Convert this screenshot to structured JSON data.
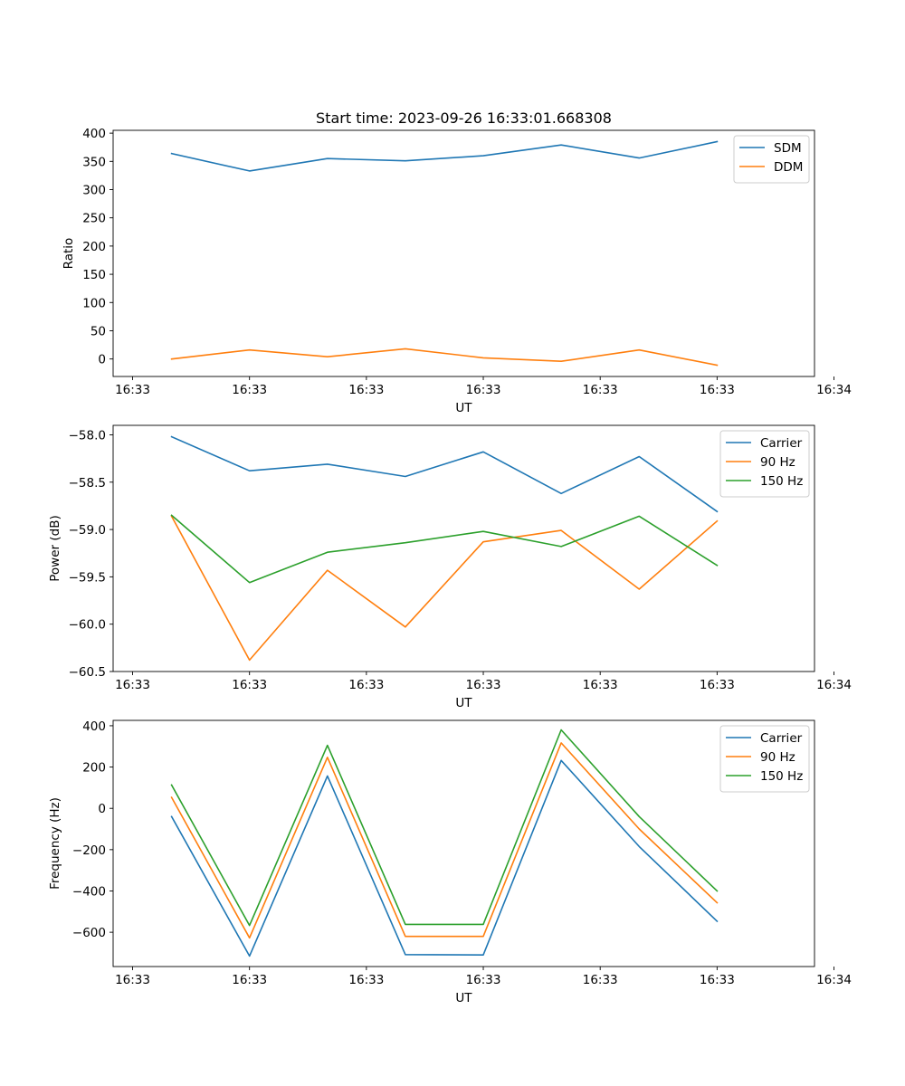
{
  "figure_title": "Start time: 2023-09-26 16:33:01.668308",
  "chart_data": [
    {
      "type": "line",
      "xlabel": "UT",
      "ylabel": "Ratio",
      "x": [
        1,
        2,
        3,
        4,
        5,
        6,
        7,
        8
      ],
      "xlim": [
        0.25,
        9.25
      ],
      "xticks": [
        0.5,
        2,
        3.5,
        5,
        6.5,
        8,
        9.5
      ],
      "xtick_labels": [
        "16:33",
        "16:33",
        "16:33",
        "16:33",
        "16:33",
        "16:33",
        "16:34"
      ],
      "ylim": [
        -31,
        405
      ],
      "yticks": [
        0,
        50,
        100,
        150,
        200,
        250,
        300,
        350,
        400
      ],
      "ytick_labels": [
        "0",
        "50",
        "100",
        "150",
        "200",
        "250",
        "300",
        "350",
        "400"
      ],
      "legend_position": "top-right",
      "series": [
        {
          "name": "SDM",
          "color": "#1f77b4",
          "values": [
            364,
            333,
            355,
            351,
            360,
            379,
            356,
            385
          ]
        },
        {
          "name": "DDM",
          "color": "#ff7f0e",
          "values": [
            0,
            16,
            4,
            18,
            2,
            -4,
            16,
            -11
          ]
        }
      ]
    },
    {
      "type": "line",
      "xlabel": "UT",
      "ylabel": "Power (dB)",
      "x": [
        1,
        2,
        3,
        4,
        5,
        6,
        7,
        8
      ],
      "xlim": [
        0.25,
        9.25
      ],
      "xticks": [
        0.5,
        2,
        3.5,
        5,
        6.5,
        8,
        9.5
      ],
      "xtick_labels": [
        "16:33",
        "16:33",
        "16:33",
        "16:33",
        "16:33",
        "16:33",
        "16:34"
      ],
      "ylim": [
        -60.5,
        -57.9
      ],
      "yticks": [
        -60.5,
        -60.0,
        -59.5,
        -59.0,
        -58.5,
        -58.0
      ],
      "ytick_labels": [
        "−60.5",
        "−60.0",
        "−59.5",
        "−59.0",
        "−58.5",
        "−58.0"
      ],
      "legend_position": "top-right",
      "series": [
        {
          "name": "Carrier",
          "color": "#1f77b4",
          "values": [
            -58.02,
            -58.38,
            -58.31,
            -58.44,
            -58.18,
            -58.62,
            -58.23,
            -58.81
          ]
        },
        {
          "name": "90 Hz",
          "color": "#ff7f0e",
          "values": [
            -58.86,
            -60.38,
            -59.43,
            -60.03,
            -59.13,
            -59.01,
            -59.63,
            -58.91
          ]
        },
        {
          "name": "150 Hz",
          "color": "#2ca02c",
          "values": [
            -58.85,
            -59.56,
            -59.24,
            -59.14,
            -59.02,
            -59.18,
            -58.86,
            -59.38
          ]
        }
      ]
    },
    {
      "type": "line",
      "xlabel": "UT",
      "ylabel": "Frequency (Hz)",
      "x": [
        1,
        2,
        3,
        4,
        5,
        6,
        7,
        8
      ],
      "xlim": [
        0.25,
        9.25
      ],
      "xticks": [
        0.5,
        2,
        3.5,
        5,
        6.5,
        8,
        9.5
      ],
      "xtick_labels": [
        "16:33",
        "16:33",
        "16:33",
        "16:33",
        "16:33",
        "16:33",
        "16:34"
      ],
      "ylim": [
        -766,
        426
      ],
      "yticks": [
        -600,
        -400,
        -200,
        0,
        200,
        400
      ],
      "ytick_labels": [
        "−600",
        "−400",
        "−200",
        "0",
        "200",
        "400"
      ],
      "legend_position": "top-right",
      "series": [
        {
          "name": "Carrier",
          "color": "#1f77b4",
          "values": [
            -40,
            -715,
            157,
            -708,
            -710,
            232,
            -185,
            -547
          ]
        },
        {
          "name": "90 Hz",
          "color": "#ff7f0e",
          "values": [
            53,
            -627,
            247,
            -620,
            -620,
            317,
            -100,
            -457
          ]
        },
        {
          "name": "150 Hz",
          "color": "#2ca02c",
          "values": [
            113,
            -567,
            305,
            -562,
            -562,
            380,
            -40,
            -400
          ]
        }
      ]
    }
  ]
}
